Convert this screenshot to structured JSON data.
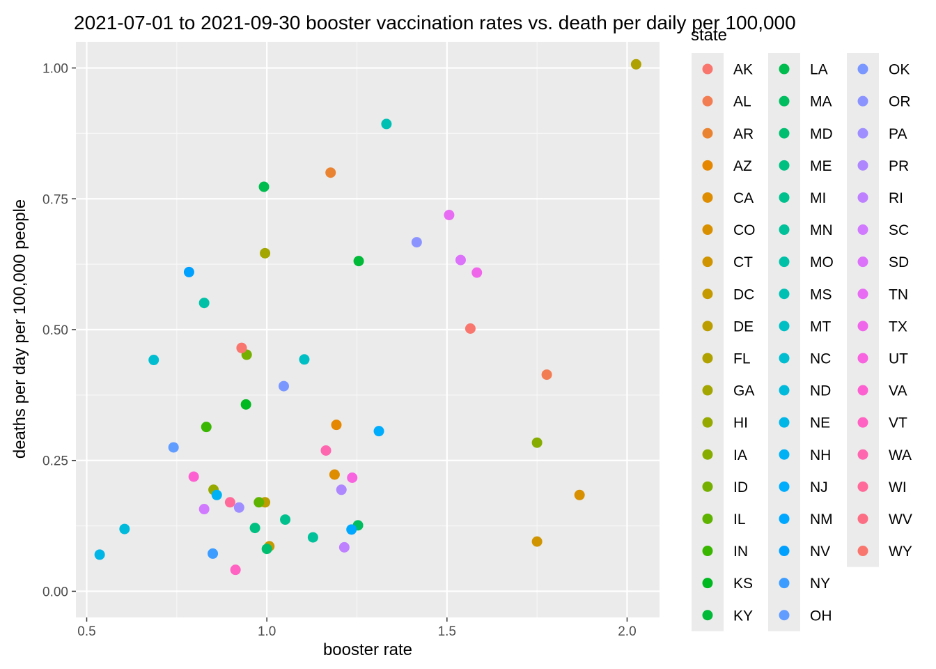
{
  "chart_data": {
    "type": "scatter",
    "title": "2021-07-01 to 2021-09-30 booster vaccination rates vs. death per daily per 100,000",
    "xlabel": "booster rate",
    "ylabel": "deaths per day per 100,000 people",
    "xlim": [
      0.47,
      2.09
    ],
    "ylim": [
      -0.05,
      1.05
    ],
    "xticks": [
      0.5,
      1.0,
      1.5,
      2.0
    ],
    "xtick_labels": [
      "0.5",
      "1.0",
      "1.5",
      "2.0"
    ],
    "yticks": [
      0.0,
      0.25,
      0.5,
      0.75,
      1.0
    ],
    "ytick_labels": [
      "0.00",
      "0.25",
      "0.50",
      "0.75",
      "1.00"
    ],
    "grid": true,
    "legend_title": "state",
    "legend_position": "right",
    "points": [
      {
        "state": "AK",
        "x": 1.565,
        "y": 0.502,
        "color": "#F8766D"
      },
      {
        "state": "AL",
        "x": 1.777,
        "y": 0.414,
        "color": "#F27D52"
      },
      {
        "state": "AR",
        "x": 1.177,
        "y": 0.8,
        "color": "#EA8331"
      },
      {
        "state": "AZ",
        "x": 1.193,
        "y": 0.318,
        "color": "#E58700"
      },
      {
        "state": "CA",
        "x": 1.188,
        "y": 0.223,
        "color": "#DE8C00"
      },
      {
        "state": "CO",
        "x": 1.868,
        "y": 0.184,
        "color": "#D89000"
      },
      {
        "state": "CT",
        "x": 1.75,
        "y": 0.095,
        "color": "#CF9400"
      },
      {
        "state": "DC",
        "x": 1.007,
        "y": 0.086,
        "color": "#C49A00"
      },
      {
        "state": "DE",
        "x": 0.995,
        "y": 0.17,
        "color": "#BB9D00"
      },
      {
        "state": "FL",
        "x": 2.025,
        "y": 1.007,
        "color": "#AFA100"
      },
      {
        "state": "GA",
        "x": 0.995,
        "y": 0.646,
        "color": "#A3A500"
      },
      {
        "state": "HI",
        "x": 0.852,
        "y": 0.194,
        "color": "#96A900"
      },
      {
        "state": "IA",
        "x": 1.75,
        "y": 0.284,
        "color": "#86AC00"
      },
      {
        "state": "ID",
        "x": 0.944,
        "y": 0.452,
        "color": "#75AF00"
      },
      {
        "state": "IL",
        "x": 0.978,
        "y": 0.17,
        "color": "#5EB300"
      },
      {
        "state": "IN",
        "x": 0.832,
        "y": 0.314,
        "color": "#39B600"
      },
      {
        "state": "KS",
        "x": 0.942,
        "y": 0.357,
        "color": "#00B81F"
      },
      {
        "state": "KY",
        "x": 1.255,
        "y": 0.631,
        "color": "#00BA38"
      },
      {
        "state": "LA",
        "x": 0.992,
        "y": 0.773,
        "color": "#00BB4E"
      },
      {
        "state": "MA",
        "x": 1.253,
        "y": 0.126,
        "color": "#00BD5F"
      },
      {
        "state": "MD",
        "x": 1.0,
        "y": 0.081,
        "color": "#00BE6F"
      },
      {
        "state": "ME",
        "x": 0.967,
        "y": 0.121,
        "color": "#00C081"
      },
      {
        "state": "MI",
        "x": 1.051,
        "y": 0.137,
        "color": "#00C08D"
      },
      {
        "state": "MN",
        "x": 1.128,
        "y": 0.103,
        "color": "#00C19A"
      },
      {
        "state": "MO",
        "x": 0.826,
        "y": 0.551,
        "color": "#00C1A7"
      },
      {
        "state": "MS",
        "x": 1.332,
        "y": 0.893,
        "color": "#00C0B4"
      },
      {
        "state": "MT",
        "x": 1.104,
        "y": 0.443,
        "color": "#00BFC4"
      },
      {
        "state": "NC",
        "x": 0.686,
        "y": 0.442,
        "color": "#00BDD0"
      },
      {
        "state": "ND",
        "x": 0.605,
        "y": 0.119,
        "color": "#00BADC"
      },
      {
        "state": "NE",
        "x": 0.536,
        "y": 0.07,
        "color": "#00B6E7"
      },
      {
        "state": "NH",
        "x": 0.861,
        "y": 0.184,
        "color": "#00B2F3"
      },
      {
        "state": "NJ",
        "x": 1.311,
        "y": 0.306,
        "color": "#00ACFC"
      },
      {
        "state": "NM",
        "x": 1.235,
        "y": 0.118,
        "color": "#00A7FF"
      },
      {
        "state": "NV",
        "x": 0.784,
        "y": 0.61,
        "color": "#00A0FF"
      },
      {
        "state": "NY",
        "x": 0.85,
        "y": 0.072,
        "color": "#3C9CFF"
      },
      {
        "state": "OH",
        "x": 0.741,
        "y": 0.275,
        "color": "#619CFF"
      },
      {
        "state": "OK",
        "x": 1.047,
        "y": 0.392,
        "color": "#7997FF"
      },
      {
        "state": "OR",
        "x": 1.416,
        "y": 0.667,
        "color": "#8B93FF"
      },
      {
        "state": "PA",
        "x": 0.923,
        "y": 0.16,
        "color": "#9E8EFF"
      },
      {
        "state": "PR",
        "x": 1.207,
        "y": 0.194,
        "color": "#AE87FF"
      },
      {
        "state": "RI",
        "x": 1.215,
        "y": 0.084,
        "color": "#BF80FF"
      },
      {
        "state": "SC",
        "x": 0.826,
        "y": 0.157,
        "color": "#D179FF"
      },
      {
        "state": "SD",
        "x": 1.538,
        "y": 0.633,
        "color": "#DC71FA"
      },
      {
        "state": "TN",
        "x": 1.506,
        "y": 0.719,
        "color": "#E76BF3"
      },
      {
        "state": "TX",
        "x": 1.583,
        "y": 0.609,
        "color": "#F066EA"
      },
      {
        "state": "UT",
        "x": 1.237,
        "y": 0.217,
        "color": "#F863DF"
      },
      {
        "state": "VA",
        "x": 0.797,
        "y": 0.219,
        "color": "#FD61D1"
      },
      {
        "state": "VT",
        "x": 0.913,
        "y": 0.041,
        "color": "#FF62C2"
      },
      {
        "state": "WA",
        "x": 1.164,
        "y": 0.269,
        "color": "#FF66B0"
      },
      {
        "state": "WI",
        "x": 0.898,
        "y": 0.17,
        "color": "#FF6A9A"
      },
      {
        "state": "WV",
        "x": 0.93,
        "y": 0.465,
        "color": "#FC6E84"
      },
      {
        "state": "WY",
        "x": 0.93,
        "y": 0.465,
        "color": "#F8766D"
      }
    ]
  }
}
